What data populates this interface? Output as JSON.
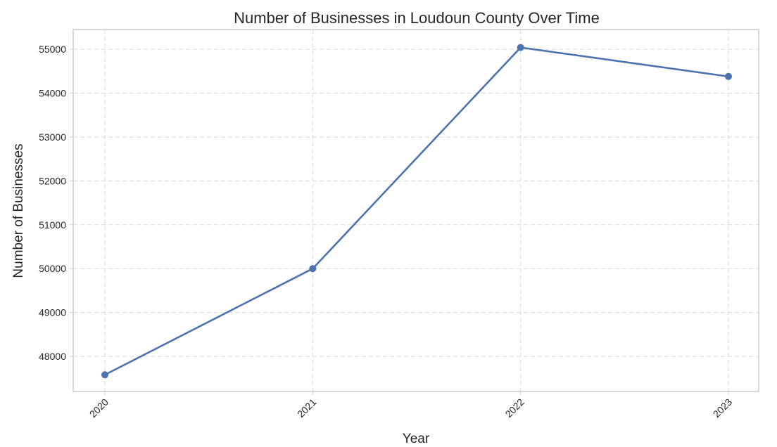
{
  "chart_data": {
    "type": "line",
    "title": "Number of Businesses in Loudoun County Over Time",
    "xlabel": "Year",
    "ylabel": "Number of Businesses",
    "x": [
      "2020",
      "2021",
      "2022",
      "2023"
    ],
    "series": [
      {
        "values": [
          47580,
          50000,
          55040,
          54380
        ],
        "color": "#4c72b0",
        "marker": "circle"
      }
    ],
    "yticks": [
      48000,
      49000,
      50000,
      51000,
      52000,
      53000,
      54000,
      55000
    ],
    "ylim": [
      47200,
      55450
    ],
    "grid": true,
    "legend": "none"
  }
}
